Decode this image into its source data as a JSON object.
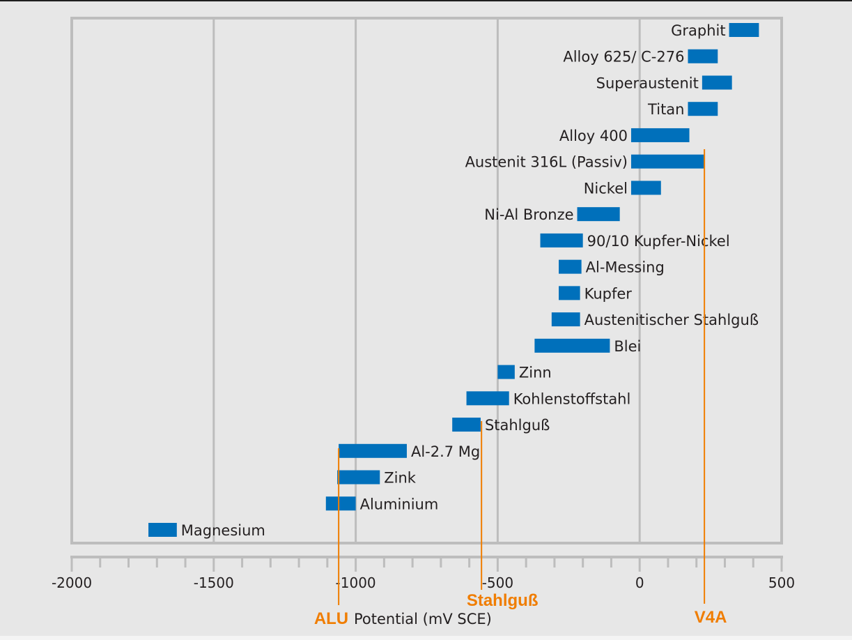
{
  "chart_data": {
    "type": "bar",
    "subtype": "floating-range-horizontal",
    "title": "",
    "xlabel": "Potential (mV SCE)",
    "ylabel": "",
    "xlim": [
      -2000,
      500
    ],
    "x_ticks": [
      -2000,
      -1500,
      -1000,
      -500,
      0,
      500
    ],
    "x_minor_step": 100,
    "grid": true,
    "bar_color": "#0070bb",
    "grid_color": "#bdbdbd",
    "series": [
      {
        "name": "Graphit",
        "min": 315,
        "max": 420,
        "label_side": "left"
      },
      {
        "name": "Alloy 625/ C-276",
        "min": 170,
        "max": 275,
        "label_side": "left"
      },
      {
        "name": "Superaustenit",
        "min": 220,
        "max": 325,
        "label_side": "left"
      },
      {
        "name": "Titan",
        "min": 170,
        "max": 275,
        "label_side": "left"
      },
      {
        "name": "Alloy 400",
        "min": -30,
        "max": 175,
        "label_side": "left"
      },
      {
        "name": "Austenit 316L (Passiv)",
        "min": -30,
        "max": 230,
        "label_side": "left"
      },
      {
        "name": "Nickel",
        "min": -30,
        "max": 75,
        "label_side": "left"
      },
      {
        "name": "Ni-Al Bronze",
        "min": -220,
        "max": -70,
        "label_side": "left"
      },
      {
        "name": "90/10 Kupfer-Nickel",
        "min": -350,
        "max": -200,
        "label_side": "right"
      },
      {
        "name": "Al-Messing",
        "min": -285,
        "max": -205,
        "label_side": "right"
      },
      {
        "name": "Kupfer",
        "min": -285,
        "max": -210,
        "label_side": "right"
      },
      {
        "name": "Austenitischer Stahlguß",
        "min": -310,
        "max": -210,
        "label_side": "right"
      },
      {
        "name": "Blei",
        "min": -370,
        "max": -105,
        "label_side": "right"
      },
      {
        "name": "Zinn",
        "min": -500,
        "max": -440,
        "label_side": "right"
      },
      {
        "name": "Kohlenstoffstahl",
        "min": -610,
        "max": -460,
        "label_side": "right"
      },
      {
        "name": "Stahlguß",
        "min": -660,
        "max": -560,
        "label_side": "right"
      },
      {
        "name": "Al-2.7 Mg",
        "min": -1060,
        "max": -820,
        "label_side": "right"
      },
      {
        "name": "Zink",
        "min": -1065,
        "max": -915,
        "label_side": "right"
      },
      {
        "name": "Aluminium",
        "min": -1105,
        "max": -1000,
        "label_side": "right"
      },
      {
        "name": "Magnesium",
        "min": -1730,
        "max": -1630,
        "label_side": "right"
      }
    ],
    "annotations": [
      {
        "label": "ALU",
        "x": -1060,
        "color": "#f07d00"
      },
      {
        "label": "Stahlguß",
        "x": -557,
        "color": "#f07d00"
      },
      {
        "label": "V4A",
        "x": 228,
        "color": "#f07d00"
      }
    ]
  }
}
